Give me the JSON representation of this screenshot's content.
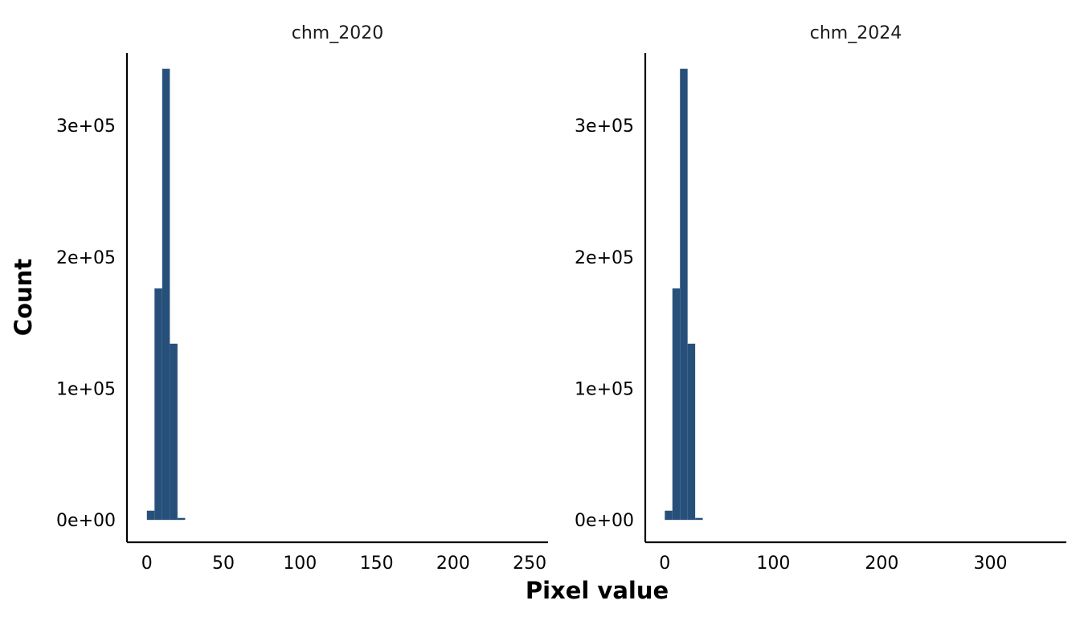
{
  "chart_data": {
    "type": "bar",
    "xlabel": "Pixel value",
    "ylabel": "Count",
    "bar_color": "#26507A",
    "background": "#FFFFFF",
    "grid": false,
    "legend": "none",
    "panels": [
      {
        "title": "chm_2020",
        "xlim": [
          -13,
          262
        ],
        "ylim": [
          -17000,
          355000
        ],
        "x_ticks": [
          0,
          50,
          100,
          150,
          200,
          250
        ],
        "x_tick_labels": [
          "0",
          "50",
          "100",
          "150",
          "200",
          "250"
        ],
        "y_ticks": [
          0,
          100000,
          200000,
          300000
        ],
        "y_tick_labels": [
          "0e+00",
          "1e+05",
          "2e+05",
          "3e+05"
        ],
        "bins": [
          {
            "x_start": 0,
            "x_end": 5,
            "count": 7000
          },
          {
            "x_start": 5,
            "x_end": 10,
            "count": 176000
          },
          {
            "x_start": 10,
            "x_end": 15,
            "count": 343000
          },
          {
            "x_start": 15,
            "x_end": 20,
            "count": 134000
          },
          {
            "x_start": 20,
            "x_end": 25,
            "count": 1500
          }
        ]
      },
      {
        "title": "chm_2024",
        "xlim": [
          -18,
          370
        ],
        "ylim": [
          -17000,
          355000
        ],
        "x_ticks": [
          0,
          100,
          200,
          300
        ],
        "x_tick_labels": [
          "0",
          "100",
          "200",
          "300"
        ],
        "y_ticks": [
          0,
          100000,
          200000,
          300000
        ],
        "y_tick_labels": [
          "0e+00",
          "1e+05",
          "2e+05",
          "3e+05"
        ],
        "bins": [
          {
            "x_start": 0,
            "x_end": 7,
            "count": 7000
          },
          {
            "x_start": 7,
            "x_end": 14,
            "count": 176000
          },
          {
            "x_start": 14,
            "x_end": 21,
            "count": 343000
          },
          {
            "x_start": 21,
            "x_end": 28,
            "count": 134000
          },
          {
            "x_start": 28,
            "x_end": 35,
            "count": 1500
          }
        ]
      }
    ]
  }
}
